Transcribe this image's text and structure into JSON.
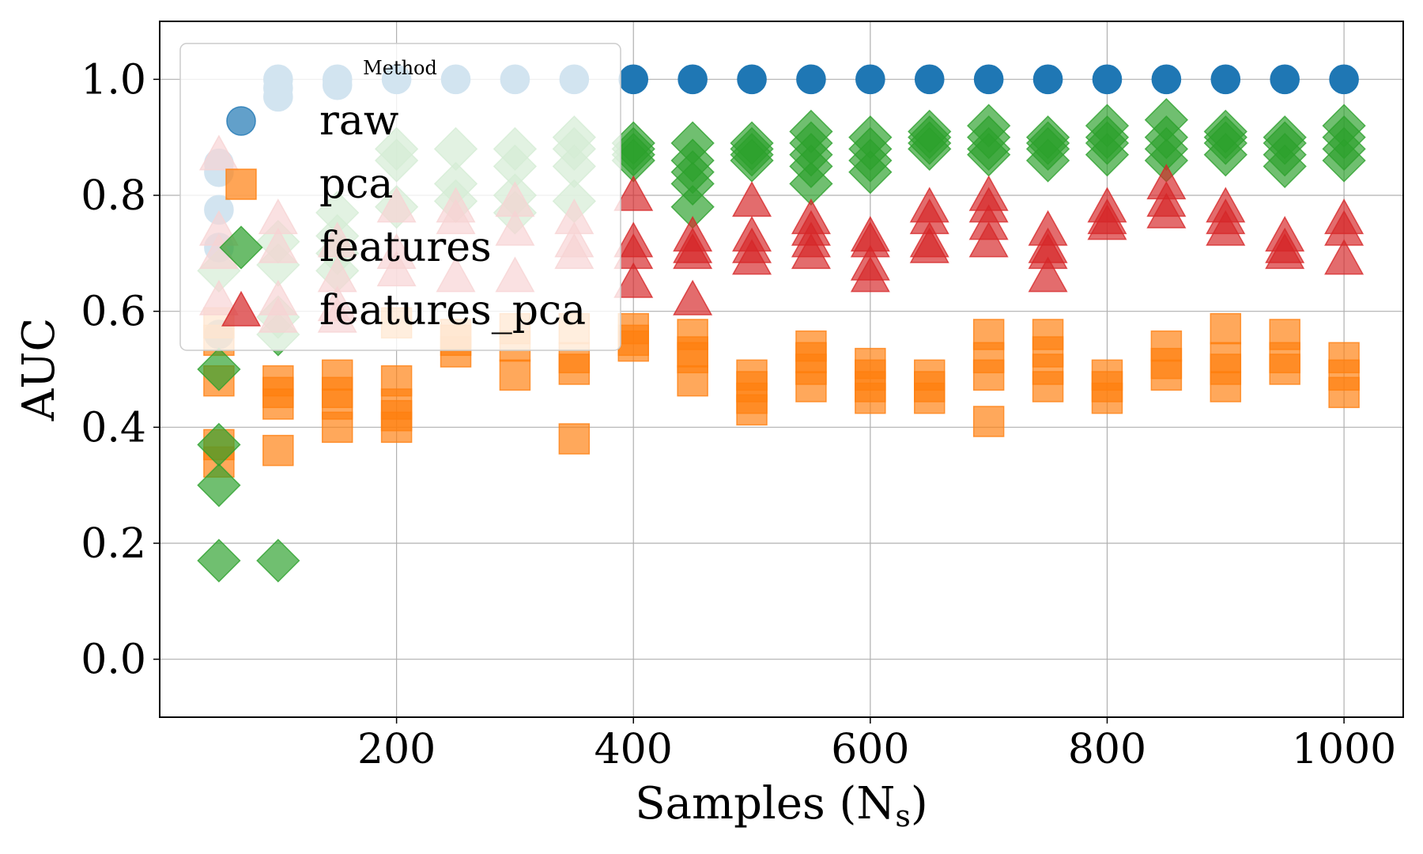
{
  "chart_data": {
    "type": "scatter",
    "xlabel": "Samples (N",
    "xlabel_sub": "s",
    "xlabel_close": ")",
    "ylabel": "AUC",
    "xlim": [
      0,
      1050
    ],
    "ylim": [
      -0.1,
      1.1
    ],
    "xticks": [
      200,
      400,
      600,
      800,
      1000
    ],
    "xtick_labels": [
      "200",
      "400",
      "600",
      "800",
      "1000"
    ],
    "yticks": [
      0.0,
      0.2,
      0.4,
      0.6,
      0.8,
      1.0
    ],
    "ytick_labels": [
      "0.0",
      "0.2",
      "0.4",
      "0.6",
      "0.8",
      "1.0"
    ],
    "grid": true,
    "legend": {
      "title": "Method",
      "placement": "top-left"
    },
    "series": [
      {
        "name": "raw",
        "marker": "circle",
        "color": "#1f77b4",
        "points": [
          [
            50,
            0.855
          ],
          [
            50,
            0.84
          ],
          [
            50,
            0.775
          ],
          [
            50,
            0.71
          ],
          [
            50,
            0.56
          ],
          [
            100,
            1.0
          ],
          [
            100,
            0.985
          ],
          [
            100,
            0.97
          ],
          [
            150,
            1.0
          ],
          [
            150,
            0.99
          ],
          [
            200,
            1.0
          ],
          [
            250,
            1.0
          ],
          [
            300,
            1.0
          ],
          [
            350,
            1.0
          ],
          [
            400,
            1.0
          ],
          [
            450,
            1.0
          ],
          [
            500,
            1.0
          ],
          [
            550,
            1.0
          ],
          [
            600,
            1.0
          ],
          [
            650,
            1.0
          ],
          [
            700,
            1.0
          ],
          [
            750,
            1.0
          ],
          [
            800,
            1.0
          ],
          [
            850,
            1.0
          ],
          [
            900,
            1.0
          ],
          [
            950,
            1.0
          ],
          [
            1000,
            1.0
          ]
        ]
      },
      {
        "name": "pca",
        "marker": "square",
        "color": "#ff7f0e",
        "points": [
          [
            50,
            0.58
          ],
          [
            50,
            0.55
          ],
          [
            50,
            0.48
          ],
          [
            50,
            0.37
          ],
          [
            50,
            0.34
          ],
          [
            100,
            0.48
          ],
          [
            100,
            0.46
          ],
          [
            100,
            0.44
          ],
          [
            100,
            0.36
          ],
          [
            150,
            0.49
          ],
          [
            150,
            0.46
          ],
          [
            150,
            0.44
          ],
          [
            150,
            0.4
          ],
          [
            200,
            0.58
          ],
          [
            200,
            0.48
          ],
          [
            200,
            0.44
          ],
          [
            200,
            0.42
          ],
          [
            200,
            0.4
          ],
          [
            250,
            0.56
          ],
          [
            250,
            0.55
          ],
          [
            250,
            0.53
          ],
          [
            300,
            0.57
          ],
          [
            300,
            0.54
          ],
          [
            300,
            0.49
          ],
          [
            350,
            0.57
          ],
          [
            350,
            0.52
          ],
          [
            350,
            0.5
          ],
          [
            350,
            0.38
          ],
          [
            400,
            0.57
          ],
          [
            400,
            0.55
          ],
          [
            400,
            0.54
          ],
          [
            450,
            0.56
          ],
          [
            450,
            0.53
          ],
          [
            450,
            0.52
          ],
          [
            450,
            0.48
          ],
          [
            500,
            0.49
          ],
          [
            500,
            0.47
          ],
          [
            500,
            0.45
          ],
          [
            500,
            0.43
          ],
          [
            550,
            0.54
          ],
          [
            550,
            0.52
          ],
          [
            550,
            0.5
          ],
          [
            550,
            0.47
          ],
          [
            600,
            0.51
          ],
          [
            600,
            0.49
          ],
          [
            600,
            0.47
          ],
          [
            600,
            0.45
          ],
          [
            650,
            0.49
          ],
          [
            650,
            0.47
          ],
          [
            650,
            0.45
          ],
          [
            700,
            0.56
          ],
          [
            700,
            0.52
          ],
          [
            700,
            0.49
          ],
          [
            700,
            0.41
          ],
          [
            750,
            0.56
          ],
          [
            750,
            0.53
          ],
          [
            750,
            0.5
          ],
          [
            750,
            0.47
          ],
          [
            800,
            0.49
          ],
          [
            800,
            0.47
          ],
          [
            800,
            0.45
          ],
          [
            850,
            0.54
          ],
          [
            850,
            0.51
          ],
          [
            850,
            0.49
          ],
          [
            900,
            0.57
          ],
          [
            900,
            0.52
          ],
          [
            900,
            0.5
          ],
          [
            900,
            0.47
          ],
          [
            950,
            0.56
          ],
          [
            950,
            0.52
          ],
          [
            950,
            0.5
          ],
          [
            1000,
            0.52
          ],
          [
            1000,
            0.49
          ],
          [
            1000,
            0.46
          ]
        ]
      },
      {
        "name": "features",
        "marker": "diamond",
        "color": "#2ca02c",
        "points": [
          [
            50,
            0.67
          ],
          [
            50,
            0.5
          ],
          [
            50,
            0.37
          ],
          [
            50,
            0.3
          ],
          [
            50,
            0.17
          ],
          [
            100,
            0.72
          ],
          [
            100,
            0.68
          ],
          [
            100,
            0.59
          ],
          [
            100,
            0.56
          ],
          [
            100,
            0.17
          ],
          [
            150,
            0.77
          ],
          [
            150,
            0.73
          ],
          [
            150,
            0.7
          ],
          [
            150,
            0.67
          ],
          [
            200,
            0.88
          ],
          [
            200,
            0.86
          ],
          [
            200,
            0.78
          ],
          [
            250,
            0.88
          ],
          [
            250,
            0.82
          ],
          [
            250,
            0.79
          ],
          [
            300,
            0.88
          ],
          [
            300,
            0.85
          ],
          [
            300,
            0.8
          ],
          [
            300,
            0.77
          ],
          [
            350,
            0.9
          ],
          [
            350,
            0.88
          ],
          [
            350,
            0.85
          ],
          [
            350,
            0.79
          ],
          [
            400,
            0.89
          ],
          [
            400,
            0.88
          ],
          [
            400,
            0.87
          ],
          [
            400,
            0.86
          ],
          [
            450,
            0.89
          ],
          [
            450,
            0.86
          ],
          [
            450,
            0.84
          ],
          [
            450,
            0.82
          ],
          [
            450,
            0.78
          ],
          [
            500,
            0.89
          ],
          [
            500,
            0.88
          ],
          [
            500,
            0.87
          ],
          [
            500,
            0.86
          ],
          [
            550,
            0.91
          ],
          [
            550,
            0.89
          ],
          [
            550,
            0.87
          ],
          [
            550,
            0.85
          ],
          [
            550,
            0.82
          ],
          [
            600,
            0.9
          ],
          [
            600,
            0.88
          ],
          [
            600,
            0.86
          ],
          [
            600,
            0.84
          ],
          [
            650,
            0.91
          ],
          [
            650,
            0.9
          ],
          [
            650,
            0.89
          ],
          [
            650,
            0.88
          ],
          [
            700,
            0.92
          ],
          [
            700,
            0.9
          ],
          [
            700,
            0.88
          ],
          [
            700,
            0.87
          ],
          [
            750,
            0.9
          ],
          [
            750,
            0.89
          ],
          [
            750,
            0.88
          ],
          [
            750,
            0.86
          ],
          [
            800,
            0.92
          ],
          [
            800,
            0.9
          ],
          [
            800,
            0.89
          ],
          [
            800,
            0.87
          ],
          [
            850,
            0.93
          ],
          [
            850,
            0.9
          ],
          [
            850,
            0.88
          ],
          [
            850,
            0.86
          ],
          [
            900,
            0.91
          ],
          [
            900,
            0.9
          ],
          [
            900,
            0.89
          ],
          [
            900,
            0.87
          ],
          [
            950,
            0.9
          ],
          [
            950,
            0.89
          ],
          [
            950,
            0.87
          ],
          [
            950,
            0.85
          ],
          [
            1000,
            0.92
          ],
          [
            1000,
            0.9
          ],
          [
            1000,
            0.88
          ],
          [
            1000,
            0.86
          ]
        ]
      },
      {
        "name": "features_pca",
        "marker": "triangle",
        "color": "#d62728",
        "points": [
          [
            50,
            0.87
          ],
          [
            50,
            0.74
          ],
          [
            50,
            0.7
          ],
          [
            50,
            0.62
          ],
          [
            100,
            0.76
          ],
          [
            100,
            0.71
          ],
          [
            100,
            0.62
          ],
          [
            100,
            0.59
          ],
          [
            150,
            0.72
          ],
          [
            150,
            0.66
          ],
          [
            150,
            0.61
          ],
          [
            150,
            0.59
          ],
          [
            200,
            0.78
          ],
          [
            200,
            0.7
          ],
          [
            200,
            0.67
          ],
          [
            250,
            0.78
          ],
          [
            250,
            0.76
          ],
          [
            250,
            0.66
          ],
          [
            300,
            0.79
          ],
          [
            300,
            0.74
          ],
          [
            300,
            0.66
          ],
          [
            350,
            0.76
          ],
          [
            350,
            0.72
          ],
          [
            350,
            0.7
          ],
          [
            400,
            0.8
          ],
          [
            400,
            0.72
          ],
          [
            400,
            0.7
          ],
          [
            400,
            0.65
          ],
          [
            450,
            0.73
          ],
          [
            450,
            0.71
          ],
          [
            450,
            0.7
          ],
          [
            450,
            0.62
          ],
          [
            500,
            0.79
          ],
          [
            500,
            0.73
          ],
          [
            500,
            0.71
          ],
          [
            500,
            0.69
          ],
          [
            550,
            0.76
          ],
          [
            550,
            0.74
          ],
          [
            550,
            0.72
          ],
          [
            550,
            0.7
          ],
          [
            600,
            0.73
          ],
          [
            600,
            0.72
          ],
          [
            600,
            0.68
          ],
          [
            600,
            0.66
          ],
          [
            650,
            0.78
          ],
          [
            650,
            0.76
          ],
          [
            650,
            0.72
          ],
          [
            650,
            0.71
          ],
          [
            700,
            0.8
          ],
          [
            700,
            0.78
          ],
          [
            700,
            0.75
          ],
          [
            700,
            0.72
          ],
          [
            750,
            0.74
          ],
          [
            750,
            0.71
          ],
          [
            750,
            0.7
          ],
          [
            750,
            0.66
          ],
          [
            800,
            0.78
          ],
          [
            800,
            0.76
          ],
          [
            800,
            0.75
          ],
          [
            850,
            0.82
          ],
          [
            850,
            0.79
          ],
          [
            850,
            0.77
          ],
          [
            900,
            0.78
          ],
          [
            900,
            0.76
          ],
          [
            900,
            0.74
          ],
          [
            950,
            0.73
          ],
          [
            950,
            0.71
          ],
          [
            950,
            0.7
          ],
          [
            1000,
            0.76
          ],
          [
            1000,
            0.74
          ],
          [
            1000,
            0.69
          ]
        ]
      }
    ]
  }
}
